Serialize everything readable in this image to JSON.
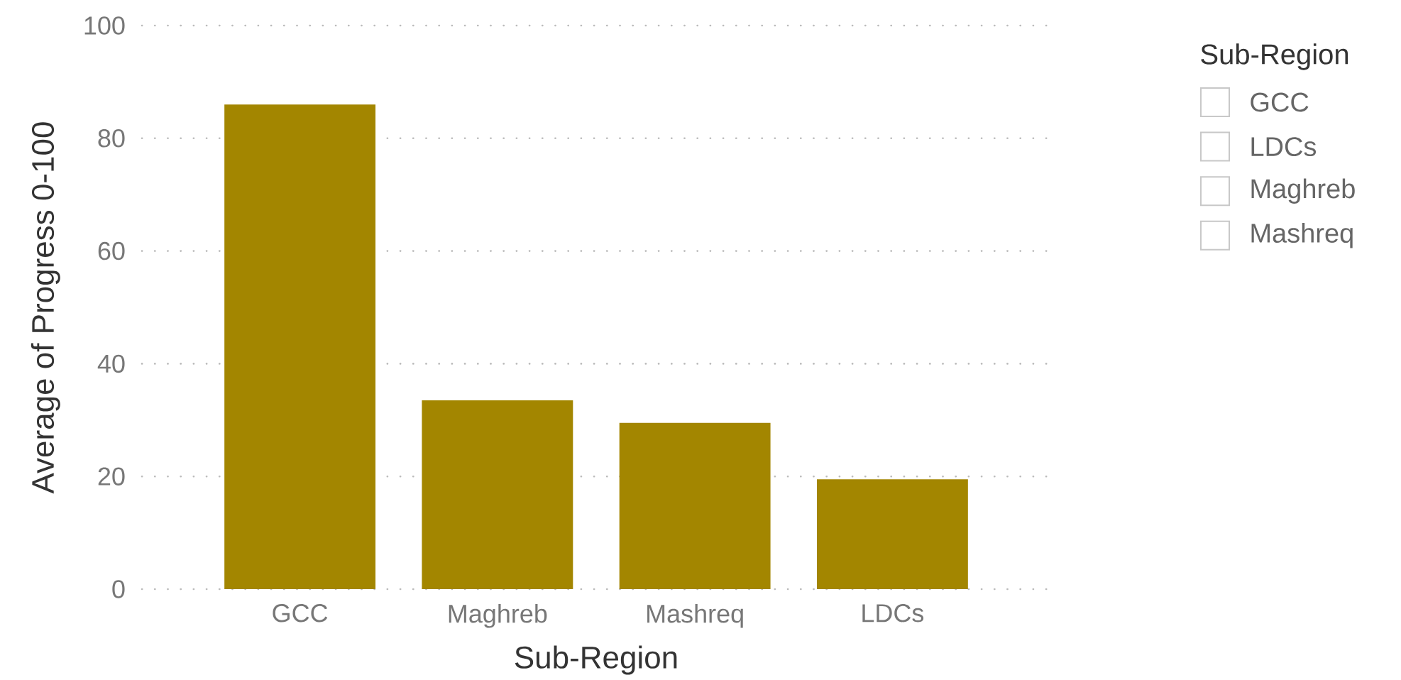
{
  "chart_data": [
    {
      "type": "bar",
      "xlabel": "Sub-Region",
      "ylabel": "Average of Progress 0-100",
      "categories": [
        "GCC",
        "Maghreb",
        "Mashreq",
        "LDCs"
      ],
      "values": [
        86,
        33.5,
        29.5,
        19.5
      ],
      "color": "#a38600",
      "ylim": [
        0,
        100
      ],
      "yticks": [
        0,
        20,
        40,
        60,
        80,
        100
      ],
      "grid": "y"
    },
    {
      "type": "other",
      "title": "Sub-Region",
      "annotations": [
        "GCC",
        "LDCs",
        "Maghreb",
        "Mashreq"
      ]
    }
  ]
}
